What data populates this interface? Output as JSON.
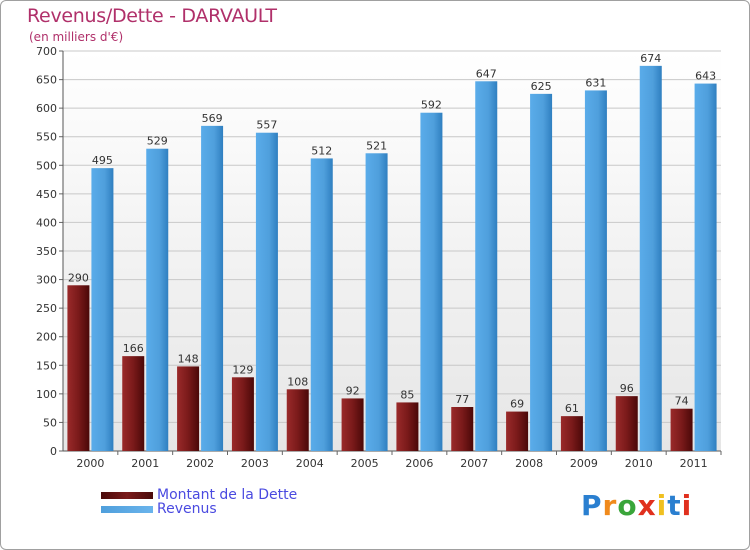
{
  "header": {
    "title": "Revenus/Dette - DARVAULT",
    "subtitle": "(en milliers d'€)"
  },
  "colors": {
    "dette": "#7a1a1a",
    "revenus": "#4f9fdc",
    "title": "#b0306a",
    "legend_text": "#4a4ae0"
  },
  "chart_data": {
    "type": "bar",
    "title": "Revenus/Dette - DARVAULT",
    "subtitle": "(en milliers d'€)",
    "xlabel": "",
    "ylabel": "",
    "ylim": [
      0,
      700
    ],
    "yticks": [
      0,
      50,
      100,
      150,
      200,
      250,
      300,
      350,
      400,
      450,
      500,
      550,
      600,
      650,
      700
    ],
    "grid": true,
    "categories": [
      "2000",
      "2001",
      "2002",
      "2003",
      "2004",
      "2005",
      "2006",
      "2007",
      "2008",
      "2009",
      "2010",
      "2011"
    ],
    "series": [
      {
        "name": "Montant de la Dette",
        "values": [
          290,
          166,
          148,
          129,
          108,
          92,
          85,
          77,
          69,
          61,
          96,
          74
        ]
      },
      {
        "name": "Revenus",
        "values": [
          495,
          529,
          569,
          557,
          512,
          521,
          592,
          647,
          625,
          631,
          674,
          643
        ]
      }
    ],
    "legend": "bottom-left"
  },
  "logo": {
    "letters": [
      "P",
      "r",
      "o",
      "x",
      "i",
      "t",
      "i"
    ],
    "letter_colors": [
      "#2a7fd0",
      "#f08a1c",
      "#3aa53a",
      "#e0301e",
      "#f0c020",
      "#2a7fd0",
      "#e0301e"
    ]
  }
}
